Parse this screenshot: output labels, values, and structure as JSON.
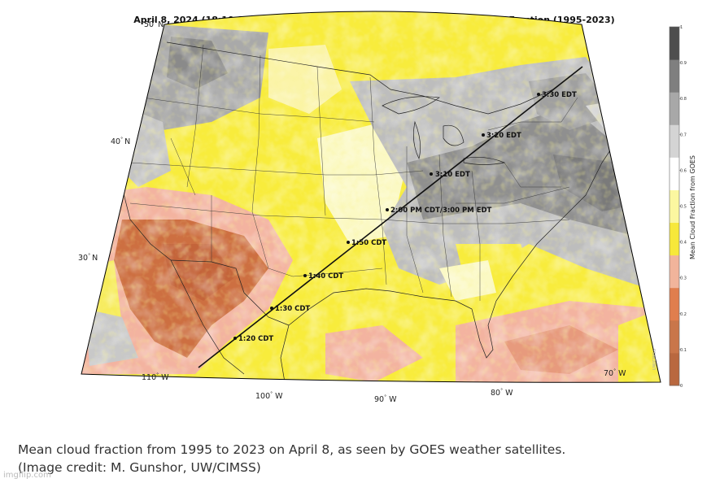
{
  "map": {
    "title": "April 8, 2024 (18:10-19:30 UTC)  Solar Eclipse Track and GOES Mean Cloud Fraction (1995-2023)",
    "latitude_labels": [
      {
        "value": "50",
        "hemisphere": "N"
      },
      {
        "value": "40",
        "hemisphere": "N"
      },
      {
        "value": "30",
        "hemisphere": "N"
      }
    ],
    "longitude_labels": [
      {
        "value": "110",
        "hemisphere": "W"
      },
      {
        "value": "100",
        "hemisphere": "W"
      },
      {
        "value": "90",
        "hemisphere": "W"
      },
      {
        "value": "80",
        "hemisphere": "W"
      },
      {
        "value": "70",
        "hemisphere": "W"
      }
    ],
    "eclipse_track_times": [
      "1:20 CDT",
      "1:30 CDT",
      "1:40 CDT",
      "1:50 CDT",
      "2:00 PM CDT/3:00 PM EDT",
      "3:10 EDT",
      "3:20 EDT",
      "3:30 EDT"
    ],
    "colorbar": {
      "label": "Mean Cloud Fraction from GOES",
      "ticks": [
        "0",
        "0.1",
        "0.2",
        "0.3",
        "0.4",
        "0.5",
        "0.6",
        "0.7",
        "0.8",
        "0.9",
        "1"
      ],
      "colors": [
        "#b9683f",
        "#c9764a",
        "#e07e4e",
        "#f1b49b",
        "#f7e83a",
        "#fbf7a0",
        "#ffffff",
        "#d4d4d4",
        "#a8a8a8",
        "#7f7f7f",
        "#4e4e4e"
      ]
    },
    "colors": {
      "very_clear": "#cd6f41",
      "clear": "#f3b3a0",
      "mid": "#f8ec3c",
      "light": "#fbf9c4",
      "cloudy": "#b8b8b8",
      "very_cloudy": "#7e7e7e",
      "track": "#111111"
    },
    "watermark": "UW/CIMSS"
  },
  "caption": {
    "line1": "Mean cloud fraction from 1995 to 2023 on April 8, as seen by GOES weather satellites.",
    "line2": "(Image credit: M. Gunshor, UW/CIMSS)"
  },
  "imgflip_watermark": "imgflip.com"
}
